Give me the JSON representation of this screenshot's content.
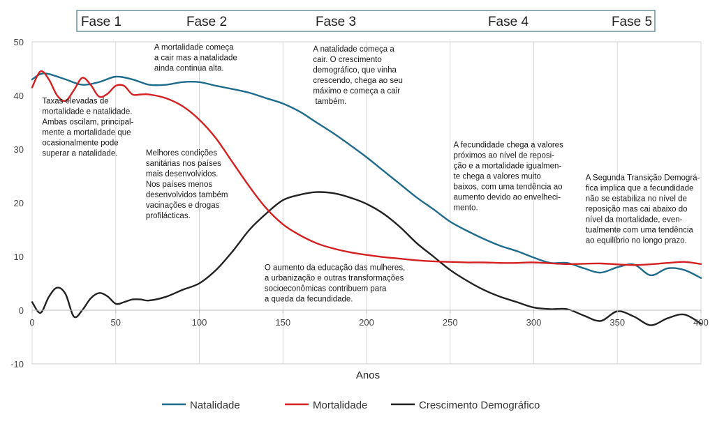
{
  "chart_data": {
    "type": "line",
    "xlabel": "Anos",
    "ylabel": "",
    "xlim": [
      0,
      400
    ],
    "ylim": [
      -10,
      50
    ],
    "x_ticks": [
      0,
      50,
      100,
      150,
      200,
      250,
      300,
      350,
      400
    ],
    "y_ticks": [
      -10,
      0,
      10,
      20,
      30,
      40,
      50
    ],
    "grid": {
      "vertical": true,
      "horizontal": false
    },
    "legend": {
      "placement": "bottom"
    },
    "phases": [
      {
        "label": "Fase 1",
        "end": 50
      },
      {
        "label": "Fase 2",
        "end": 100
      },
      {
        "label": "Fase 3",
        "end": 150
      },
      {
        "label": "Fase 4",
        "end": 250
      },
      {
        "label": "Fase 5",
        "end": 400
      }
    ],
    "series": [
      {
        "name": "Natalidade",
        "color": "#1f6b8c",
        "x": [
          0,
          5,
          10,
          20,
          30,
          40,
          50,
          60,
          70,
          80,
          90,
          100,
          110,
          120,
          130,
          140,
          150,
          160,
          170,
          180,
          190,
          200,
          210,
          220,
          230,
          240,
          250,
          260,
          270,
          280,
          290,
          300,
          310,
          320,
          330,
          340,
          350,
          360,
          370,
          380,
          390,
          400
        ],
        "values": [
          43,
          44,
          44,
          43,
          42,
          42.5,
          43.5,
          43,
          42,
          42,
          42.5,
          42.5,
          41.8,
          41.2,
          40.5,
          39.5,
          38.5,
          37,
          35,
          33,
          30.8,
          28.5,
          26,
          23.5,
          21,
          18.8,
          16.5,
          14.8,
          13.3,
          12,
          11,
          9.8,
          8.8,
          8.8,
          7.8,
          7,
          8,
          8.5,
          6.5,
          7.8,
          7.5,
          6
        ]
      },
      {
        "name": "Mortalidade",
        "color": "#d42020",
        "x": [
          0,
          5,
          10,
          15,
          20,
          25,
          30,
          35,
          40,
          45,
          50,
          55,
          60,
          65,
          70,
          80,
          90,
          100,
          110,
          120,
          130,
          140,
          150,
          160,
          170,
          180,
          190,
          200,
          210,
          220,
          230,
          240,
          250,
          260,
          270,
          280,
          290,
          300,
          320,
          340,
          360,
          380,
          390,
          400
        ],
        "values": [
          41.5,
          44.5,
          43,
          40,
          39,
          41,
          43.3,
          42,
          39.8,
          40.3,
          41.8,
          41.8,
          40.2,
          40.2,
          40.2,
          39.5,
          38,
          35.5,
          32,
          27.5,
          23,
          19,
          16,
          14,
          12.5,
          11.5,
          10.8,
          10.3,
          9.9,
          9.6,
          9.3,
          9.1,
          9,
          8.9,
          8.9,
          8.8,
          8.8,
          8.9,
          8.6,
          8.7,
          8.4,
          8.8,
          9,
          8.6
        ]
      },
      {
        "name": "Crescimento Demográfico",
        "color": "#222222",
        "x": [
          0,
          5,
          10,
          15,
          20,
          25,
          30,
          35,
          40,
          45,
          50,
          55,
          60,
          65,
          70,
          80,
          90,
          100,
          110,
          120,
          130,
          140,
          150,
          160,
          170,
          180,
          190,
          200,
          210,
          220,
          230,
          240,
          250,
          260,
          270,
          280,
          290,
          300,
          310,
          320,
          330,
          340,
          350,
          360,
          370,
          380,
          390,
          400
        ],
        "values": [
          1.5,
          -0.5,
          2.5,
          4.2,
          3,
          -1.2,
          0,
          2.2,
          3.2,
          2.6,
          1.2,
          1.5,
          2,
          2,
          1.8,
          2.5,
          3.8,
          5,
          7.5,
          11,
          15,
          18,
          20.5,
          21.5,
          22,
          21.8,
          21,
          19.8,
          18,
          15.5,
          12.5,
          10,
          7.5,
          5.5,
          3.8,
          2.5,
          1.5,
          0.5,
          0.2,
          0.2,
          -1,
          -2,
          -0.2,
          -1.2,
          -2.8,
          -1.5,
          -0.8,
          -2.5
        ]
      }
    ],
    "annotations": [
      {
        "x": 6,
        "y": 38.5,
        "lines": [
          "Taxas elevadas de",
          "mortalidade e natalidade.",
          "Ambas oscilam, principal-",
          "mente a mortalidade que",
          "ocasionalmente pode",
          "superar a natalidade."
        ]
      },
      {
        "x": 73,
        "y": 48.5,
        "lines": [
          "A mortalidade começa",
          "a cair mas a natalidade",
          "ainda continua alta."
        ]
      },
      {
        "x": 68,
        "y": 28.8,
        "lines": [
          "Melhores condições",
          "sanitárias nos países",
          "mais desenvolvidos.",
          "Nos países menos",
          "desenvolvidos também",
          "vacinações e drogas",
          "profilácticas."
        ]
      },
      {
        "x": 168,
        "y": 48.2,
        "lines": [
          "A natalidade começa a",
          "cair. O crescimento",
          "demográfico, que vinha",
          "crescendo, chega ao seu",
          "máximo e começa a cair",
          " também."
        ]
      },
      {
        "x": 252,
        "y": 30.3,
        "lines": [
          "A fecundidade chega a valores",
          "próximos ao nível de reposi-",
          "ção e a mortalidade igualmen-",
          "te chega a valores muito",
          "baixos, com uma tendência ao",
          "aumento devido ao envelheci-",
          "mento."
        ]
      },
      {
        "x": 331,
        "y": 24.2,
        "lines": [
          "A Segunda Transição Demográ-",
          "fica implica que a fecundidade",
          "não se estabiliza no nível de",
          "reposição mas cai abaixo do",
          "nível da mortalidade, even-",
          "tualmente com uma tendência",
          "ao equilíbrio no longo prazo."
        ]
      },
      {
        "x": 139,
        "y": 7.5,
        "lines": [
          "O aumento da educação das mulheres,",
          "a urbanização e outras transformações",
          "socioeconômicas contribuem para",
          "a queda da fecundidade."
        ]
      }
    ]
  }
}
